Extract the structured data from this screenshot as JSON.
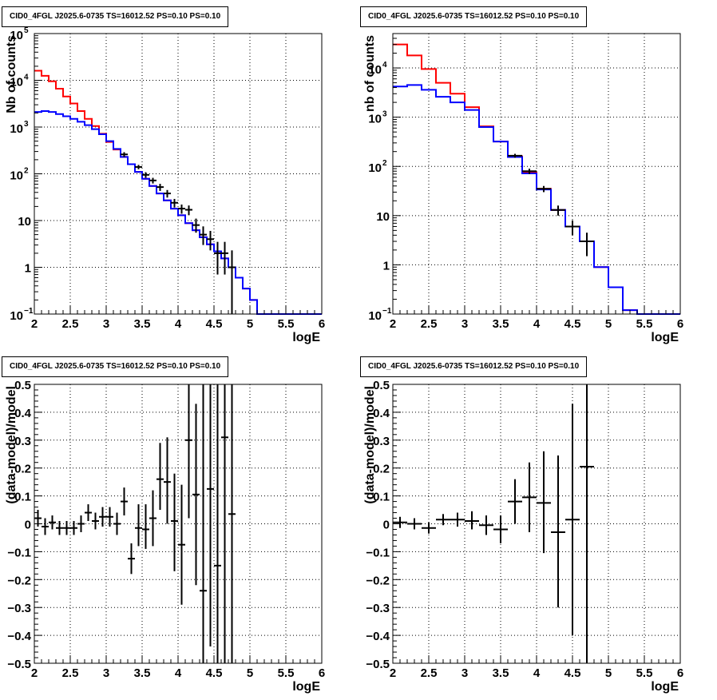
{
  "chart_data": [
    {
      "type": "line",
      "title": "CID0_4FGL J2025.6-0735 TS=16012.52 PS=0.10 PS=0.10",
      "xlabel": "logE",
      "ylabel": "Nb of counts",
      "yscale": "log",
      "xlim": [
        2,
        6
      ],
      "ylim": [
        0.1,
        100000
      ],
      "grid": true,
      "xticks": [
        "2",
        "2.5",
        "3",
        "3.5",
        "4",
        "4.5",
        "5",
        "5.5",
        "6"
      ],
      "yticks": [
        {
          "value": 0.1,
          "label": "10",
          "exp": "−1"
        },
        {
          "value": 1,
          "label": "1",
          "exp": ""
        },
        {
          "value": 10,
          "label": "10",
          "exp": ""
        },
        {
          "value": 100,
          "label": "10",
          "exp": "2"
        },
        {
          "value": 1000,
          "label": "10",
          "exp": "3"
        },
        {
          "value": 10000,
          "label": "10",
          "exp": "4"
        },
        {
          "value": 100000,
          "label": "10",
          "exp": "5"
        }
      ],
      "series": [
        {
          "color": "#ff0000",
          "bin_edges": [
            2.0,
            2.1,
            2.2,
            2.3,
            2.4,
            2.5,
            2.6,
            2.7,
            2.8,
            2.9,
            3.0,
            3.1,
            3.2,
            3.3,
            3.4,
            3.5,
            3.6,
            3.7,
            3.8,
            3.9,
            4.0,
            4.1,
            4.2,
            4.3,
            4.4,
            4.5,
            4.6,
            4.7,
            4.8,
            4.9,
            5.0,
            5.1,
            5.2,
            5.3,
            5.4,
            5.5,
            5.6,
            5.7,
            5.8,
            5.9,
            6.0
          ],
          "values": [
            16000,
            12500,
            9500,
            6600,
            4500,
            3200,
            2200,
            1500,
            1050,
            720,
            480,
            330,
            230,
            160,
            110,
            78,
            55,
            38,
            27,
            18,
            13,
            8.8,
            6.2,
            4.4,
            3.1,
            2.2,
            1.55,
            1.0,
            0.6,
            0.35,
            0.2,
            0.1,
            0.1,
            0.1,
            0.1,
            0.1,
            0.1,
            0.1,
            0.1,
            0.1
          ]
        },
        {
          "color": "#0000ff",
          "bin_edges": [
            2.0,
            2.1,
            2.2,
            2.3,
            2.4,
            2.5,
            2.6,
            2.7,
            2.8,
            2.9,
            3.0,
            3.1,
            3.2,
            3.3,
            3.4,
            3.5,
            3.6,
            3.7,
            3.8,
            3.9,
            4.0,
            4.1,
            4.2,
            4.3,
            4.4,
            4.5,
            4.6,
            4.7,
            4.8,
            4.9,
            5.0,
            5.1,
            5.2,
            5.3,
            5.4,
            5.5,
            5.6,
            5.7,
            5.8,
            5.9,
            6.0
          ],
          "values": [
            2100,
            2200,
            2100,
            1900,
            1700,
            1500,
            1300,
            1100,
            900,
            700,
            500,
            340,
            230,
            160,
            110,
            78,
            55,
            38,
            27,
            18,
            13,
            8.8,
            6.2,
            4.4,
            3.1,
            2.2,
            1.55,
            1.0,
            0.6,
            0.35,
            0.2,
            0.1,
            0.1,
            0.1,
            0.1,
            0.1,
            0.1,
            0.1,
            0.1,
            0.1
          ]
        }
      ],
      "points": [
        {
          "x": 3.25,
          "y": 260,
          "xerr": 0.05,
          "ylo": 230,
          "yhi": 290
        },
        {
          "x": 3.45,
          "y": 140,
          "xerr": 0.05,
          "ylo": 125,
          "yhi": 155
        },
        {
          "x": 3.55,
          "y": 95,
          "xerr": 0.05,
          "ylo": 82,
          "yhi": 108
        },
        {
          "x": 3.65,
          "y": 72,
          "xerr": 0.05,
          "ylo": 62,
          "yhi": 82
        },
        {
          "x": 3.75,
          "y": 52,
          "xerr": 0.05,
          "ylo": 43,
          "yhi": 61
        },
        {
          "x": 3.85,
          "y": 38,
          "xerr": 0.05,
          "ylo": 31,
          "yhi": 45
        },
        {
          "x": 3.95,
          "y": 24,
          "xerr": 0.05,
          "ylo": 19,
          "yhi": 29
        },
        {
          "x": 4.05,
          "y": 18,
          "xerr": 0.05,
          "ylo": 14,
          "yhi": 22
        },
        {
          "x": 4.15,
          "y": 17,
          "xerr": 0.05,
          "ylo": 13,
          "yhi": 21
        },
        {
          "x": 4.25,
          "y": 8,
          "xerr": 0.05,
          "ylo": 5.5,
          "yhi": 11
        },
        {
          "x": 4.35,
          "y": 5,
          "xerr": 0.05,
          "ylo": 3,
          "yhi": 7.5
        },
        {
          "x": 4.45,
          "y": 4,
          "xerr": 0.05,
          "ylo": 2.3,
          "yhi": 6
        },
        {
          "x": 4.55,
          "y": 2,
          "xerr": 0.05,
          "ylo": 0.7,
          "yhi": 3.5
        },
        {
          "x": 4.65,
          "y": 2,
          "xerr": 0.05,
          "ylo": 0.7,
          "yhi": 3.5
        },
        {
          "x": 4.75,
          "y": 1,
          "xerr": 0.05,
          "ylo": 0.1,
          "yhi": 2.3
        }
      ]
    },
    {
      "type": "line",
      "title": "CID0_4FGL J2025.6-0735 TS=16012.52 PS=0.10 PS=0.10",
      "xlabel": "logE",
      "ylabel": "nb of counts",
      "yscale": "log",
      "xlim": [
        2,
        6
      ],
      "ylim": [
        0.1,
        50000
      ],
      "grid": true,
      "xticks": [
        "2",
        "2.5",
        "3",
        "3.5",
        "4",
        "4.5",
        "5",
        "5.5",
        "6"
      ],
      "yticks": [
        {
          "value": 0.1,
          "label": "10",
          "exp": "−1"
        },
        {
          "value": 1,
          "label": "1",
          "exp": ""
        },
        {
          "value": 10,
          "label": "10",
          "exp": ""
        },
        {
          "value": 100,
          "label": "10",
          "exp": "2"
        },
        {
          "value": 1000,
          "label": "10",
          "exp": "3"
        },
        {
          "value": 10000,
          "label": "10",
          "exp": "4"
        }
      ],
      "series": [
        {
          "color": "#ff0000",
          "bin_edges": [
            2.0,
            2.2,
            2.4,
            2.6,
            2.8,
            3.0,
            3.2,
            3.4,
            3.6,
            3.8,
            4.0,
            4.2,
            4.4,
            4.6,
            4.8,
            5.0,
            5.2,
            5.4,
            5.6,
            5.8,
            6.0
          ],
          "values": [
            30000,
            18000,
            9500,
            5000,
            3000,
            1600,
            650,
            320,
            160,
            75,
            35,
            13,
            6,
            3,
            0.9,
            0.35,
            0.12,
            0.1,
            0.1,
            0.1
          ]
        },
        {
          "color": "#0000ff",
          "bin_edges": [
            2.0,
            2.2,
            2.4,
            2.6,
            2.8,
            3.0,
            3.2,
            3.4,
            3.6,
            3.8,
            4.0,
            4.2,
            4.4,
            4.6,
            4.8,
            5.0,
            5.2,
            5.4,
            5.6,
            5.8,
            6.0
          ],
          "values": [
            4200,
            4500,
            3600,
            2600,
            2000,
            1400,
            630,
            320,
            155,
            72,
            34,
            13,
            6,
            3,
            0.9,
            0.35,
            0.12,
            0.1,
            0.1,
            0.1
          ]
        }
      ],
      "points": [
        {
          "x": 3.7,
          "y": 165,
          "xerr": 0.1,
          "ylo": 150,
          "yhi": 180
        },
        {
          "x": 3.9,
          "y": 80,
          "xerr": 0.1,
          "ylo": 70,
          "yhi": 90
        },
        {
          "x": 4.1,
          "y": 35,
          "xerr": 0.1,
          "ylo": 30,
          "yhi": 40
        },
        {
          "x": 4.3,
          "y": 13,
          "xerr": 0.1,
          "ylo": 10,
          "yhi": 16
        },
        {
          "x": 4.5,
          "y": 6,
          "xerr": 0.1,
          "ylo": 4,
          "yhi": 8
        },
        {
          "x": 4.7,
          "y": 3,
          "xerr": 0.1,
          "ylo": 1.5,
          "yhi": 4.5
        }
      ]
    },
    {
      "type": "scatter",
      "title": "CID0_4FGL J2025.6-0735 TS=16012.52 PS=0.10 PS=0.10",
      "xlabel": "logE",
      "ylabel": "(data-model)/model",
      "yscale": "linear",
      "xlim": [
        2,
        6
      ],
      "ylim": [
        -0.5,
        0.5
      ],
      "grid": true,
      "xticks": [
        "2",
        "2.5",
        "3",
        "3.5",
        "4",
        "4.5",
        "5",
        "5.5",
        "6"
      ],
      "yticks": [
        {
          "value": -0.5,
          "label": "−0.5"
        },
        {
          "value": -0.4,
          "label": "−0.4"
        },
        {
          "value": -0.3,
          "label": "−0.3"
        },
        {
          "value": -0.2,
          "label": "−0.2"
        },
        {
          "value": -0.1,
          "label": "−0.1"
        },
        {
          "value": 0,
          "label": "0"
        },
        {
          "value": 0.1,
          "label": "0.1"
        },
        {
          "value": 0.2,
          "label": "0.2"
        },
        {
          "value": 0.3,
          "label": "0.3"
        },
        {
          "value": 0.4,
          "label": "0.4"
        },
        {
          "value": 0.5,
          "label": "0.5"
        }
      ],
      "points": [
        {
          "x": 2.05,
          "y": 0.02,
          "xerr": 0.05,
          "ylo": -0.01,
          "yhi": 0.05
        },
        {
          "x": 2.15,
          "y": -0.01,
          "xerr": 0.05,
          "ylo": -0.04,
          "yhi": 0.02
        },
        {
          "x": 2.25,
          "y": 0.005,
          "xerr": 0.05,
          "ylo": -0.02,
          "yhi": 0.03
        },
        {
          "x": 2.35,
          "y": -0.015,
          "xerr": 0.05,
          "ylo": -0.04,
          "yhi": 0.01
        },
        {
          "x": 2.45,
          "y": -0.015,
          "xerr": 0.05,
          "ylo": -0.04,
          "yhi": 0.01
        },
        {
          "x": 2.55,
          "y": -0.015,
          "xerr": 0.05,
          "ylo": -0.04,
          "yhi": 0.01
        },
        {
          "x": 2.65,
          "y": 0.0,
          "xerr": 0.05,
          "ylo": -0.03,
          "yhi": 0.03
        },
        {
          "x": 2.75,
          "y": 0.04,
          "xerr": 0.05,
          "ylo": 0.01,
          "yhi": 0.07
        },
        {
          "x": 2.85,
          "y": 0.01,
          "xerr": 0.05,
          "ylo": -0.02,
          "yhi": 0.04
        },
        {
          "x": 2.95,
          "y": 0.025,
          "xerr": 0.05,
          "ylo": -0.01,
          "yhi": 0.06
        },
        {
          "x": 3.05,
          "y": 0.025,
          "xerr": 0.05,
          "ylo": -0.01,
          "yhi": 0.06
        },
        {
          "x": 3.15,
          "y": 0.0,
          "xerr": 0.05,
          "ylo": -0.04,
          "yhi": 0.04
        },
        {
          "x": 3.25,
          "y": 0.08,
          "xerr": 0.05,
          "ylo": 0.03,
          "yhi": 0.13
        },
        {
          "x": 3.35,
          "y": -0.125,
          "xerr": 0.05,
          "ylo": -0.18,
          "yhi": -0.07
        },
        {
          "x": 3.45,
          "y": -0.015,
          "xerr": 0.05,
          "ylo": -0.08,
          "yhi": 0.07
        },
        {
          "x": 3.55,
          "y": -0.02,
          "xerr": 0.05,
          "ylo": -0.09,
          "yhi": 0.07
        },
        {
          "x": 3.65,
          "y": 0.02,
          "xerr": 0.05,
          "ylo": -0.08,
          "yhi": 0.12
        },
        {
          "x": 3.75,
          "y": 0.16,
          "xerr": 0.05,
          "ylo": 0.05,
          "yhi": 0.29
        },
        {
          "x": 3.85,
          "y": 0.15,
          "xerr": 0.05,
          "ylo": 0.0,
          "yhi": 0.31
        },
        {
          "x": 3.95,
          "y": 0.01,
          "xerr": 0.05,
          "ylo": -0.17,
          "yhi": 0.18
        },
        {
          "x": 4.05,
          "y": -0.075,
          "xerr": 0.05,
          "ylo": -0.29,
          "yhi": 0.14
        },
        {
          "x": 4.15,
          "y": 0.3,
          "xerr": 0.05,
          "ylo": 0.02,
          "yhi": 0.5
        },
        {
          "x": 4.25,
          "y": 0.105,
          "xerr": 0.05,
          "ylo": -0.22,
          "yhi": 0.43
        },
        {
          "x": 4.35,
          "y": -0.24,
          "xerr": 0.05,
          "ylo": -0.5,
          "yhi": 0.5
        },
        {
          "x": 4.45,
          "y": 0.125,
          "xerr": 0.05,
          "ylo": -0.44,
          "yhi": 0.5
        },
        {
          "x": 4.55,
          "y": -0.15,
          "xerr": 0.05,
          "ylo": -0.5,
          "yhi": 0.5
        },
        {
          "x": 4.65,
          "y": 0.31,
          "xerr": 0.05,
          "ylo": -0.5,
          "yhi": 0.5
        },
        {
          "x": 4.75,
          "y": 0.035,
          "xerr": 0.05,
          "ylo": -0.5,
          "yhi": 0.5
        }
      ]
    },
    {
      "type": "scatter",
      "title": "CID0_4FGL J2025.6-0735 TS=16012.52 PS=0.10 PS=0.10",
      "xlabel": "logE",
      "ylabel": "(data-model)/model",
      "yscale": "linear",
      "xlim": [
        2,
        6
      ],
      "ylim": [
        -0.5,
        0.5
      ],
      "grid": true,
      "xticks": [
        "2",
        "2.5",
        "3",
        "3.5",
        "4",
        "4.5",
        "5",
        "5.5",
        "6"
      ],
      "yticks": [
        {
          "value": -0.5,
          "label": "−0.5"
        },
        {
          "value": -0.4,
          "label": "−0.4"
        },
        {
          "value": -0.3,
          "label": "−0.3"
        },
        {
          "value": -0.2,
          "label": "−0.2"
        },
        {
          "value": -0.1,
          "label": "−0.1"
        },
        {
          "value": 0,
          "label": "0"
        },
        {
          "value": 0.1,
          "label": "0.1"
        },
        {
          "value": 0.2,
          "label": "0.2"
        },
        {
          "value": 0.3,
          "label": "0.3"
        },
        {
          "value": 0.4,
          "label": "0.4"
        },
        {
          "value": 0.5,
          "label": "0.5"
        }
      ],
      "points": [
        {
          "x": 2.1,
          "y": 0.005,
          "xerr": 0.1,
          "ylo": -0.015,
          "yhi": 0.025
        },
        {
          "x": 2.3,
          "y": 0.0,
          "xerr": 0.1,
          "ylo": -0.02,
          "yhi": 0.02
        },
        {
          "x": 2.5,
          "y": -0.015,
          "xerr": 0.1,
          "ylo": -0.035,
          "yhi": 0.005
        },
        {
          "x": 2.7,
          "y": 0.015,
          "xerr": 0.1,
          "ylo": -0.005,
          "yhi": 0.035
        },
        {
          "x": 2.9,
          "y": 0.015,
          "xerr": 0.1,
          "ylo": -0.01,
          "yhi": 0.04
        },
        {
          "x": 3.1,
          "y": 0.01,
          "xerr": 0.1,
          "ylo": -0.02,
          "yhi": 0.045
        },
        {
          "x": 3.3,
          "y": -0.005,
          "xerr": 0.1,
          "ylo": -0.04,
          "yhi": 0.03
        },
        {
          "x": 3.5,
          "y": -0.02,
          "xerr": 0.1,
          "ylo": -0.07,
          "yhi": 0.03
        },
        {
          "x": 3.7,
          "y": 0.08,
          "xerr": 0.1,
          "ylo": 0.0,
          "yhi": 0.16
        },
        {
          "x": 3.9,
          "y": 0.095,
          "xerr": 0.1,
          "ylo": -0.03,
          "yhi": 0.22
        },
        {
          "x": 4.1,
          "y": 0.075,
          "xerr": 0.1,
          "ylo": -0.105,
          "yhi": 0.26
        },
        {
          "x": 4.3,
          "y": -0.03,
          "xerr": 0.1,
          "ylo": -0.3,
          "yhi": 0.245
        },
        {
          "x": 4.5,
          "y": 0.015,
          "xerr": 0.1,
          "ylo": -0.4,
          "yhi": 0.43
        },
        {
          "x": 4.7,
          "y": 0.205,
          "xerr": 0.1,
          "ylo": -0.5,
          "yhi": 0.5
        }
      ]
    }
  ]
}
